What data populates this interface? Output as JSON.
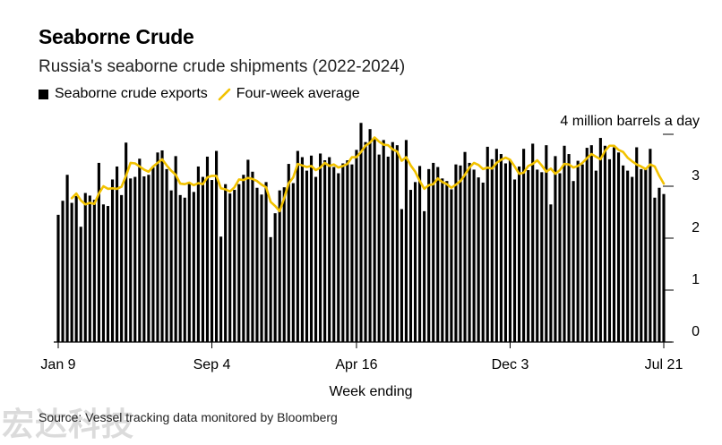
{
  "title": "Seaborne Crude",
  "subtitle": "Russia's seaborne crude shipments (2022-2024)",
  "legend": {
    "bars": "Seaborne crude exports",
    "line": "Four-week average"
  },
  "xlabel": "Week ending",
  "source": "Source: Vessel tracking data monitored by Bloomberg",
  "watermark": "宏达科技",
  "colors": {
    "bars": "#000000",
    "line": "#f2c200",
    "axis": "#000000"
  },
  "chart_data": {
    "type": "bar",
    "unit_label": "4 million barrels a day",
    "ylim": [
      0,
      4
    ],
    "y_ticks": [
      {
        "value": 0,
        "label": "0"
      },
      {
        "value": 1,
        "label": "1"
      },
      {
        "value": 2,
        "label": "2"
      },
      {
        "value": 3,
        "label": "3"
      },
      {
        "value": 4,
        "label": ""
      }
    ],
    "x_ticks": [
      {
        "index": 0,
        "label": "Jan 9"
      },
      {
        "index": 34,
        "label": "Sep 4"
      },
      {
        "index": 66,
        "label": "Apr 16"
      },
      {
        "index": 100,
        "label": "Dec 3"
      },
      {
        "index": 134,
        "label": "Jul 21"
      }
    ],
    "series": [
      {
        "name": "Seaborne crude exports",
        "kind": "bar",
        "values": [
          2.45,
          2.72,
          3.22,
          2.68,
          2.81,
          2.22,
          2.87,
          2.82,
          2.74,
          3.45,
          2.65,
          2.62,
          3.13,
          3.38,
          2.83,
          3.84,
          3.15,
          3.18,
          3.53,
          3.19,
          3.22,
          3.36,
          3.65,
          3.69,
          3.33,
          2.92,
          3.58,
          2.83,
          2.78,
          3.05,
          2.89,
          3.38,
          3.18,
          3.57,
          3.12,
          3.68,
          2.03,
          3.04,
          2.86,
          2.93,
          3.04,
          3.22,
          3.51,
          3.28,
          2.97,
          2.84,
          3.08,
          2.02,
          2.48,
          2.92,
          2.98,
          3.43,
          3.06,
          3.68,
          3.56,
          3.3,
          3.59,
          3.18,
          3.63,
          3.5,
          3.56,
          3.37,
          3.25,
          3.44,
          3.5,
          3.42,
          3.7,
          4.22,
          3.85,
          4.1,
          3.92,
          3.61,
          3.89,
          3.57,
          3.85,
          3.79,
          2.56,
          3.89,
          2.93,
          3.08,
          3.39,
          2.52,
          3.33,
          3.45,
          3.37,
          3.15,
          3.1,
          2.94,
          3.42,
          3.4,
          3.66,
          3.45,
          3.32,
          3.17,
          3.07,
          3.76,
          3.52,
          3.72,
          3.62,
          3.44,
          3.5,
          3.13,
          3.38,
          3.72,
          3.31,
          3.82,
          3.32,
          3.27,
          3.79,
          2.65,
          3.58,
          3.25,
          3.78,
          3.62,
          3.1,
          3.49,
          3.42,
          3.74,
          3.79,
          3.3,
          3.93,
          3.78,
          3.52,
          3.75,
          3.65,
          3.4,
          3.3,
          3.18,
          3.75,
          3.33,
          3.33,
          3.72,
          2.78,
          2.97,
          2.85
        ]
      },
      {
        "name": "Four-week average",
        "kind": "line",
        "values": [
          null,
          null,
          null,
          2.77,
          2.86,
          2.73,
          2.65,
          2.68,
          2.66,
          2.86,
          3.0,
          2.95,
          2.96,
          2.95,
          2.99,
          3.2,
          3.45,
          3.44,
          3.38,
          3.32,
          3.28,
          3.38,
          3.45,
          3.52,
          3.4,
          3.3,
          3.22,
          3.05,
          3.04,
          3.07,
          3.02,
          3.06,
          3.04,
          3.17,
          3.2,
          3.2,
          2.96,
          2.94,
          2.9,
          2.98,
          3.13,
          3.12,
          3.16,
          3.14,
          3.1,
          3.03,
          2.98,
          2.7,
          2.62,
          2.52,
          2.77,
          3.06,
          3.17,
          3.43,
          3.4,
          3.37,
          3.39,
          3.31,
          3.36,
          3.45,
          3.39,
          3.42,
          3.36,
          3.39,
          3.43,
          3.56,
          3.56,
          3.66,
          3.78,
          3.84,
          3.94,
          3.86,
          3.8,
          3.79,
          3.71,
          3.67,
          3.49,
          3.56,
          3.4,
          3.28,
          3.1,
          2.95,
          3.02,
          3.04,
          3.15,
          3.08,
          3.04,
          2.97,
          3.03,
          3.1,
          3.22,
          3.36,
          3.45,
          3.41,
          3.33,
          3.36,
          3.34,
          3.45,
          3.51,
          3.55,
          3.51,
          3.38,
          3.24,
          3.26,
          3.39,
          3.43,
          3.5,
          3.4,
          3.28,
          3.34,
          3.24,
          3.31,
          3.43,
          3.42,
          3.36,
          3.39,
          3.45,
          3.54,
          3.62,
          3.57,
          3.52,
          3.68,
          3.78,
          3.78,
          3.7,
          3.66,
          3.55,
          3.48,
          3.42,
          3.38,
          3.33,
          3.42,
          3.38,
          3.2,
          3.05
        ]
      }
    ]
  }
}
